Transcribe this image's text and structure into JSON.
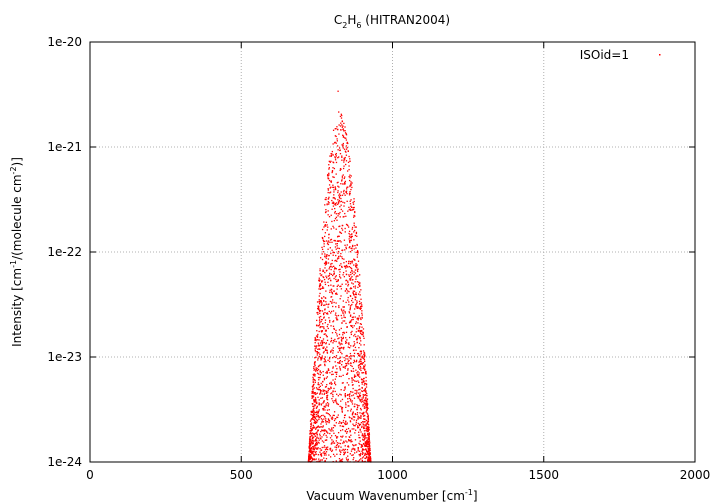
{
  "chart_data": {
    "type": "scatter",
    "title": {
      "main": "C",
      "sub1": "2",
      "mid": "H",
      "sub2": "6",
      "rest": " (HITRAN2004)"
    },
    "xlabel": {
      "main": "Vacuum Wavenumber [cm",
      "sup": "-1",
      "end": "]"
    },
    "ylabel": {
      "p1": "Intensity [cm",
      "sup1": "-1",
      "p2": "/(molecule cm",
      "sup2": "-2",
      "p3": ")]"
    },
    "x_range": [
      0,
      2000
    ],
    "y_range": [
      1e-24,
      1e-20
    ],
    "y_scale": "log",
    "x_ticks": [
      "0",
      "500",
      "1000",
      "1500",
      "2000"
    ],
    "y_ticks": [
      "1e-24",
      "1e-23",
      "1e-22",
      "1e-21",
      "1e-20"
    ],
    "grid": true,
    "legend_placement": "top-right",
    "series": [
      {
        "name": "ISOid=1",
        "color": "#ff0000",
        "band_center": 822,
        "band_lower_edge": 722,
        "band_upper_edge": 928,
        "peak_x": 820,
        "peak_intensity": 3.4e-21,
        "min_intensity": 1e-24
      }
    ]
  }
}
